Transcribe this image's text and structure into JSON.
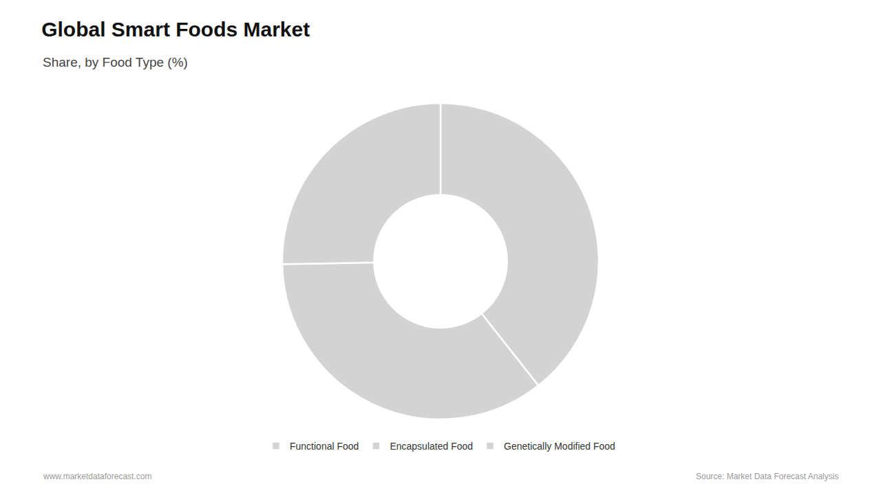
{
  "chart_data": {
    "type": "donut",
    "title": "Global Smart Foods Market",
    "subtitle": "Share, by Food Type (%)",
    "categories": [
      "Functional Food",
      "Encapsulated Food",
      "Genetically Modified Food"
    ],
    "values": [
      39.4,
      35.3,
      25.3
    ],
    "color": "#D3D3D3",
    "legend": "bottom",
    "annotations": [
      "www.marketdataforecast.com",
      "Source: Market Data Forecast Analysis"
    ]
  }
}
